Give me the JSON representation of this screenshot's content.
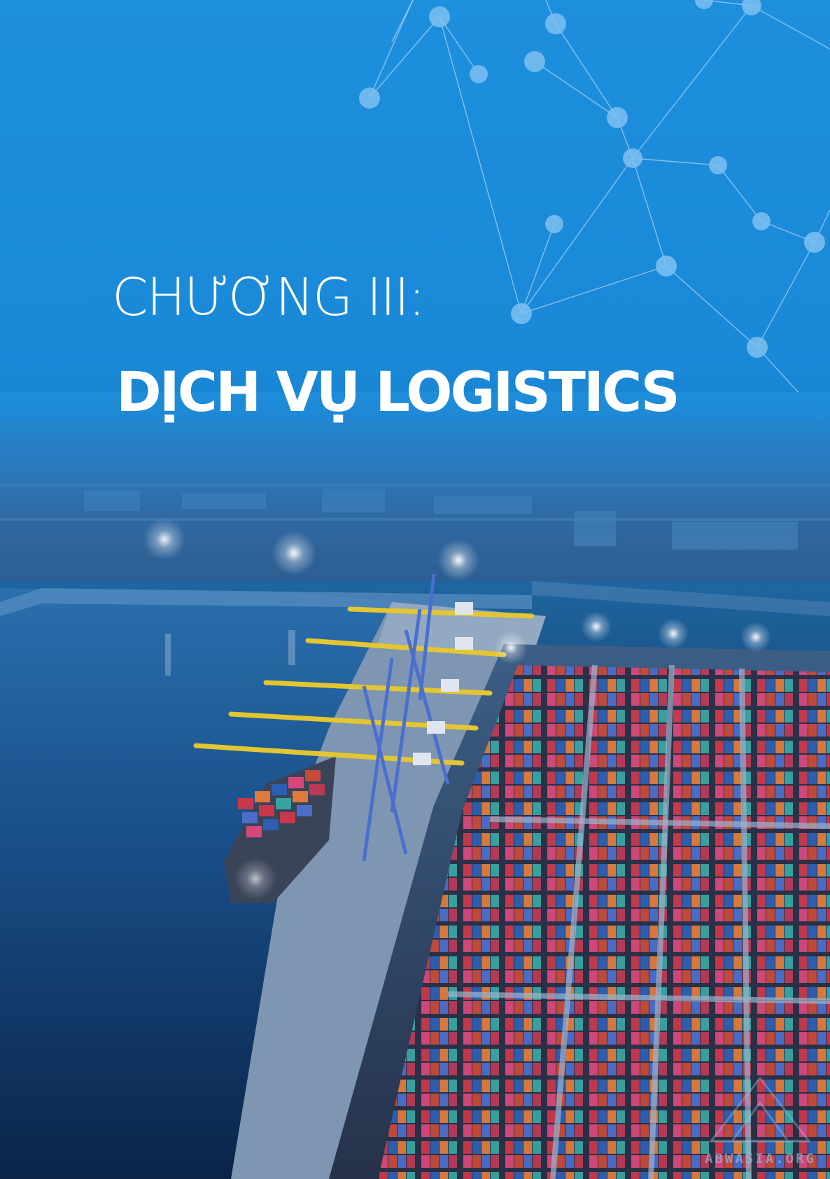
{
  "chapter": {
    "label": "CHƯƠNG III:",
    "title": "DỊCH VỤ LOGISTICS"
  },
  "colors": {
    "sky_blue": "#1e8fdc",
    "text": "#ffffff",
    "network_line": "#9fd0f2",
    "network_node": "#79bdf0",
    "container_red": "#c8384a",
    "container_blue": "#2d5fb0",
    "crane_yellow": "#e3c631"
  },
  "images": {
    "network": "network-nodes-icon",
    "photo": "container-port-aerial-photo"
  },
  "watermark": {
    "text": "ABWASIA.ORG"
  }
}
